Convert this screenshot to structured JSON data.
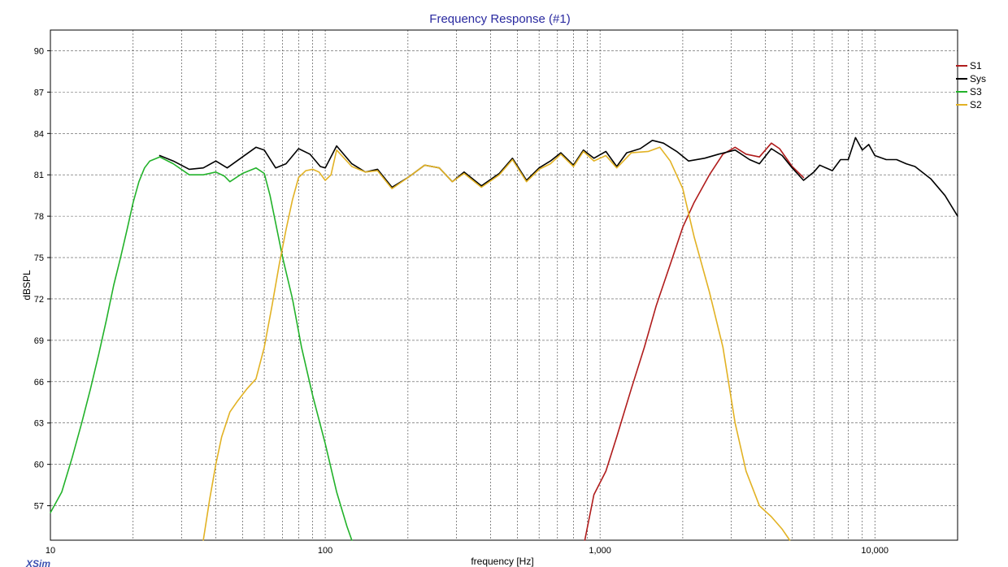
{
  "chart_data": {
    "type": "line",
    "title": "Frequency Response (#1)",
    "xlabel": "frequency [Hz]",
    "ylabel": "dBSPL",
    "x_scale": "log",
    "xlim": [
      10,
      20000
    ],
    "ylim": [
      54.5,
      91.5
    ],
    "x_ticks": [
      {
        "value": 10,
        "label": "10"
      },
      {
        "value": 100,
        "label": "100"
      },
      {
        "value": 1000,
        "label": "1,000"
      },
      {
        "value": 10000,
        "label": "10,000"
      }
    ],
    "y_ticks": [
      57,
      60,
      63,
      66,
      69,
      72,
      75,
      78,
      81,
      84,
      87,
      90
    ],
    "grid": true,
    "legend_position": "right",
    "watermark": "XSim",
    "series": [
      {
        "name": "S1",
        "color": "#b01c1c",
        "points": [
          [
            880,
            54.5
          ],
          [
            950,
            57.8
          ],
          [
            1050,
            59.5
          ],
          [
            1150,
            62
          ],
          [
            1300,
            65.5
          ],
          [
            1450,
            68.5
          ],
          [
            1600,
            71.5
          ],
          [
            1800,
            74.5
          ],
          [
            2000,
            77.2
          ],
          [
            2200,
            79
          ],
          [
            2500,
            81
          ],
          [
            2800,
            82.5
          ],
          [
            3100,
            83
          ],
          [
            3400,
            82.5
          ],
          [
            3800,
            82.3
          ],
          [
            4200,
            83.3
          ],
          [
            4500,
            82.9
          ],
          [
            5000,
            81.6
          ],
          [
            5500,
            80.8
          ]
        ]
      },
      {
        "name": "Sys",
        "color": "#000000",
        "points": [
          [
            25,
            82.4
          ],
          [
            28,
            82
          ],
          [
            32,
            81.4
          ],
          [
            36,
            81.5
          ],
          [
            40,
            82
          ],
          [
            44,
            81.5
          ],
          [
            50,
            82.3
          ],
          [
            56,
            83
          ],
          [
            60,
            82.8
          ],
          [
            66,
            81.5
          ],
          [
            72,
            81.8
          ],
          [
            80,
            82.9
          ],
          [
            88,
            82.5
          ],
          [
            96,
            81.6
          ],
          [
            100,
            81.5
          ],
          [
            110,
            83.1
          ],
          [
            125,
            81.8
          ],
          [
            140,
            81.2
          ],
          [
            155,
            81.4
          ],
          [
            175,
            80.1
          ],
          [
            200,
            80.8
          ],
          [
            230,
            81.7
          ],
          [
            260,
            81.5
          ],
          [
            290,
            80.5
          ],
          [
            320,
            81.2
          ],
          [
            370,
            80.2
          ],
          [
            430,
            81.1
          ],
          [
            480,
            82.2
          ],
          [
            540,
            80.6
          ],
          [
            600,
            81.5
          ],
          [
            660,
            82
          ],
          [
            720,
            82.6
          ],
          [
            800,
            81.7
          ],
          [
            870,
            82.8
          ],
          [
            950,
            82.2
          ],
          [
            1050,
            82.7
          ],
          [
            1150,
            81.6
          ],
          [
            1250,
            82.6
          ],
          [
            1400,
            82.9
          ],
          [
            1550,
            83.5
          ],
          [
            1700,
            83.3
          ],
          [
            1900,
            82.7
          ],
          [
            2100,
            82
          ],
          [
            2400,
            82.2
          ],
          [
            2700,
            82.5
          ],
          [
            3100,
            82.8
          ],
          [
            3500,
            82.1
          ],
          [
            3800,
            81.8
          ],
          [
            4200,
            82.9
          ],
          [
            4600,
            82.4
          ],
          [
            5000,
            81.5
          ],
          [
            5500,
            80.6
          ],
          [
            6000,
            81.2
          ],
          [
            6300,
            81.7
          ],
          [
            7000,
            81.3
          ],
          [
            7500,
            82.1
          ],
          [
            8000,
            82.1
          ],
          [
            8500,
            83.7
          ],
          [
            9000,
            82.8
          ],
          [
            9500,
            83.2
          ],
          [
            10000,
            82.4
          ],
          [
            11000,
            82.1
          ],
          [
            12000,
            82.1
          ],
          [
            13000,
            81.8
          ],
          [
            14000,
            81.6
          ],
          [
            16000,
            80.7
          ],
          [
            18000,
            79.5
          ],
          [
            20000,
            78
          ]
        ]
      },
      {
        "name": "S3",
        "color": "#22b22a",
        "points": [
          [
            10,
            56.5
          ],
          [
            11,
            58
          ],
          [
            12,
            60.5
          ],
          [
            13,
            63
          ],
          [
            14,
            65.5
          ],
          [
            15,
            68
          ],
          [
            16,
            70.5
          ],
          [
            17,
            73
          ],
          [
            18,
            75
          ],
          [
            19,
            77
          ],
          [
            20,
            79
          ],
          [
            21,
            80.5
          ],
          [
            22,
            81.5
          ],
          [
            23,
            82
          ],
          [
            25,
            82.3
          ],
          [
            28,
            81.8
          ],
          [
            32,
            81
          ],
          [
            36,
            81
          ],
          [
            40,
            81.2
          ],
          [
            43,
            80.9
          ],
          [
            45,
            80.5
          ],
          [
            50,
            81.1
          ],
          [
            56,
            81.5
          ],
          [
            60,
            81.1
          ],
          [
            63,
            79.5
          ],
          [
            66,
            77.5
          ],
          [
            70,
            75
          ],
          [
            76,
            72
          ],
          [
            82,
            68.5
          ],
          [
            90,
            65
          ],
          [
            100,
            61.5
          ],
          [
            110,
            58
          ],
          [
            120,
            55.5
          ],
          [
            125,
            54.5
          ]
        ]
      },
      {
        "name": "S2",
        "color": "#e2b224",
        "points": [
          [
            36,
            54.5
          ],
          [
            38,
            57.5
          ],
          [
            40,
            60
          ],
          [
            42,
            62
          ],
          [
            45,
            63.8
          ],
          [
            48,
            64.6
          ],
          [
            52,
            65.5
          ],
          [
            56,
            66.2
          ],
          [
            60,
            68.5
          ],
          [
            64,
            71.5
          ],
          [
            68,
            74.5
          ],
          [
            72,
            77
          ],
          [
            76,
            79.2
          ],
          [
            80,
            80.8
          ],
          [
            85,
            81.3
          ],
          [
            90,
            81.4
          ],
          [
            95,
            81.2
          ],
          [
            100,
            80.6
          ],
          [
            105,
            81
          ],
          [
            110,
            82.8
          ],
          [
            125,
            81.6
          ],
          [
            140,
            81.2
          ],
          [
            155,
            81.3
          ],
          [
            175,
            80
          ],
          [
            200,
            80.8
          ],
          [
            230,
            81.7
          ],
          [
            260,
            81.5
          ],
          [
            290,
            80.5
          ],
          [
            320,
            81.1
          ],
          [
            370,
            80.1
          ],
          [
            430,
            81
          ],
          [
            480,
            82.1
          ],
          [
            540,
            80.5
          ],
          [
            600,
            81.4
          ],
          [
            660,
            81.8
          ],
          [
            720,
            82.5
          ],
          [
            800,
            81.6
          ],
          [
            870,
            82.7
          ],
          [
            950,
            82
          ],
          [
            1050,
            82.4
          ],
          [
            1150,
            81.5
          ],
          [
            1300,
            82.6
          ],
          [
            1500,
            82.7
          ],
          [
            1650,
            83
          ],
          [
            1800,
            82
          ],
          [
            2000,
            80
          ],
          [
            2200,
            76.5
          ],
          [
            2500,
            72.5
          ],
          [
            2800,
            68.5
          ],
          [
            3100,
            63
          ],
          [
            3400,
            59.5
          ],
          [
            3800,
            57
          ],
          [
            4200,
            56.2
          ],
          [
            4600,
            55.3
          ],
          [
            4900,
            54.5
          ]
        ]
      }
    ]
  }
}
